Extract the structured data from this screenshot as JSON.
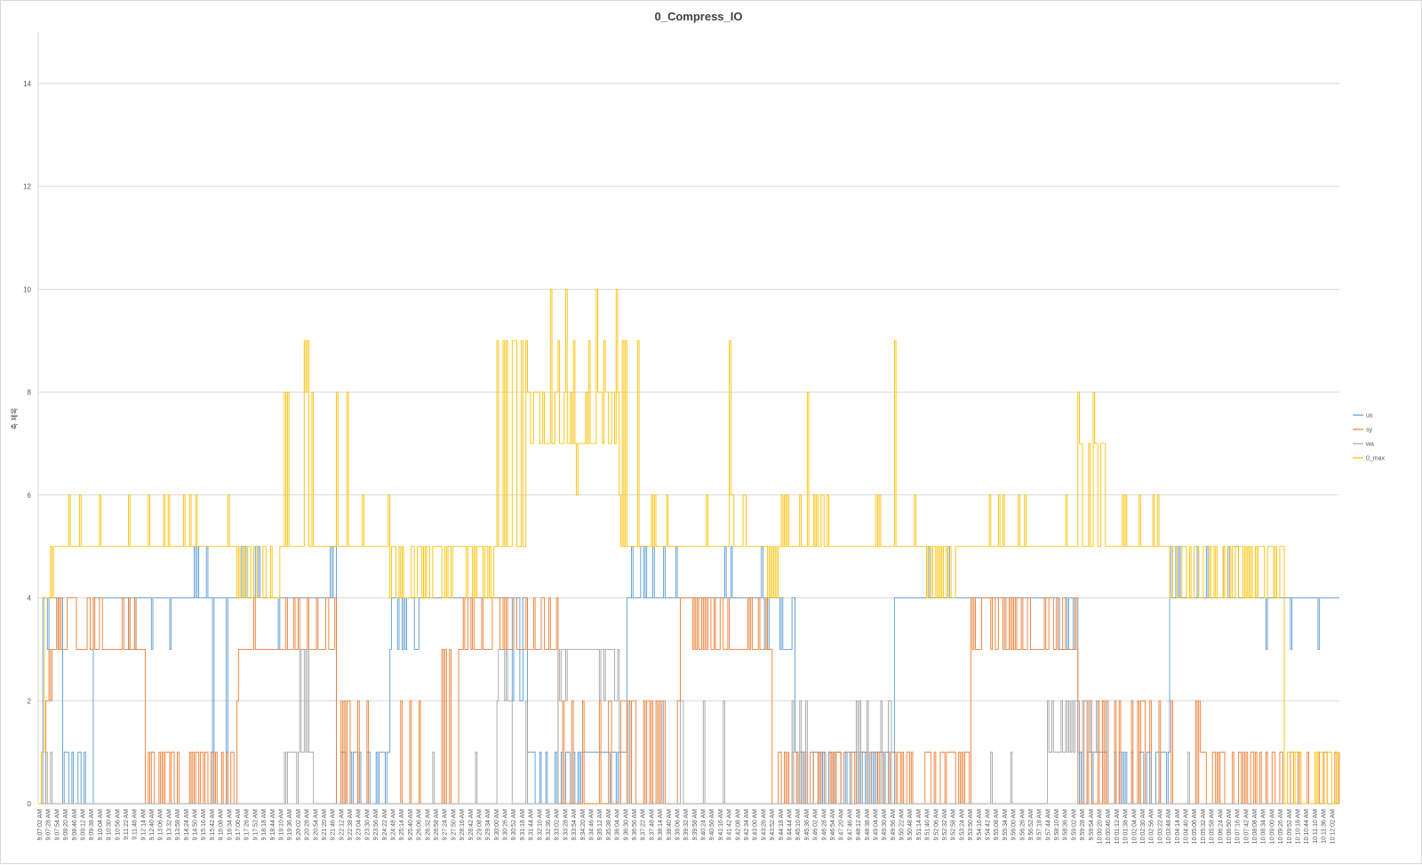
{
  "chart_data": {
    "type": "line",
    "title": "0_Compress_IO",
    "xlabel": "",
    "ylabel": "축 제목",
    "ylim": [
      0,
      15
    ],
    "yticks": [
      0,
      2,
      4,
      6,
      8,
      10,
      12,
      14
    ],
    "grid": true,
    "legend_position": "right",
    "x_start": "9:07:02 AM",
    "x_end": "10:12:20 AM",
    "x_tick_interval_seconds": 26,
    "x_tick_labels": [
      "9:07:02 AM",
      "9:07:28 AM",
      "9:07:54 AM",
      "9:08:20 AM",
      "9:08:46 AM",
      "9:09:12 AM",
      "9:09:38 AM",
      "9:10:04 AM",
      "9:10:30 AM",
      "9:10:56 AM",
      "9:11:22 AM",
      "9:11:48 AM",
      "9:12:14 AM",
      "9:12:40 AM",
      "9:13:06 AM",
      "9:13:32 AM",
      "9:13:58 AM",
      "9:14:24 AM",
      "9:14:50 AM",
      "9:15:16 AM",
      "9:15:42 AM",
      "9:16:08 AM",
      "9:16:34 AM",
      "9:17:00 AM",
      "9:17:26 AM",
      "9:17:52 AM",
      "9:18:18 AM",
      "9:18:44 AM",
      "9:19:10 AM",
      "9:19:36 AM",
      "9:20:02 AM",
      "9:20:28 AM",
      "9:20:54 AM",
      "9:21:20 AM",
      "9:21:46 AM",
      "9:22:12 AM",
      "9:22:38 AM",
      "9:23:04 AM",
      "9:23:30 AM",
      "9:23:56 AM",
      "9:24:22 AM",
      "9:24:48 AM",
      "9:25:14 AM",
      "9:25:40 AM",
      "9:26:06 AM",
      "9:26:32 AM",
      "9:26:58 AM",
      "9:27:24 AM",
      "9:27:50 AM",
      "9:28:16 AM",
      "9:28:42 AM",
      "9:29:08 AM",
      "9:29:34 AM",
      "9:30:00 AM",
      "9:30:26 AM",
      "9:30:52 AM",
      "9:31:18 AM",
      "9:31:44 AM",
      "9:32:10 AM",
      "9:32:36 AM",
      "9:33:02 AM",
      "9:33:28 AM",
      "9:33:54 AM",
      "9:34:20 AM",
      "9:34:46 AM",
      "9:35:12 AM",
      "9:35:38 AM",
      "9:36:04 AM",
      "9:36:30 AM",
      "9:36:56 AM",
      "9:37:22 AM",
      "9:37:48 AM",
      "9:38:14 AM",
      "9:38:40 AM",
      "9:39:06 AM",
      "9:39:32 AM",
      "9:39:58 AM",
      "9:40:24 AM",
      "9:40:50 AM",
      "9:41:16 AM",
      "9:41:42 AM",
      "9:42:08 AM",
      "9:42:34 AM",
      "9:43:00 AM",
      "9:43:26 AM",
      "9:43:52 AM",
      "9:44:18 AM",
      "9:44:44 AM",
      "9:45:10 AM",
      "9:45:36 AM",
      "9:46:02 AM",
      "9:46:28 AM",
      "9:46:54 AM",
      "9:47:20 AM",
      "9:47:46 AM",
      "9:48:12 AM",
      "9:48:38 AM",
      "9:49:04 AM",
      "9:49:30 AM",
      "9:49:56 AM",
      "9:50:22 AM",
      "9:50:48 AM",
      "9:51:14 AM",
      "9:51:40 AM",
      "9:52:06 AM",
      "9:52:32 AM",
      "9:52:58 AM",
      "9:53:24 AM",
      "9:53:50 AM",
      "9:54:16 AM",
      "9:54:42 AM",
      "9:55:08 AM",
      "9:55:34 AM",
      "9:56:00 AM",
      "9:56:26 AM",
      "9:56:52 AM",
      "9:57:18 AM",
      "9:57:44 AM",
      "9:58:10 AM",
      "9:58:36 AM",
      "9:59:02 AM",
      "9:59:28 AM",
      "9:59:54 AM",
      "10:00:20 AM",
      "10:00:46 AM",
      "10:01:12 AM",
      "10:01:38 AM",
      "10:02:04 AM",
      "10:02:30 AM",
      "10:02:56 AM",
      "10:03:22 AM",
      "10:03:48 AM",
      "10:04:14 AM",
      "10:04:40 AM",
      "10:05:06 AM",
      "10:05:32 AM",
      "10:05:58 AM",
      "10:06:24 AM",
      "10:06:50 AM",
      "10:07:16 AM",
      "10:07:42 AM",
      "10:08:08 AM",
      "10:08:34 AM",
      "10:09:00 AM",
      "10:09:26 AM",
      "10:09:52 AM",
      "10:10:18 AM",
      "10:10:44 AM",
      "10:11:10 AM",
      "10:11:36 AM",
      "10:12:02 AM"
    ],
    "series": [
      {
        "name": "us",
        "color": "#5B9BD5",
        "segments": [
          {
            "from": 0,
            "to": 3,
            "base": 0,
            "alt": 1,
            "density": 0.15
          },
          {
            "from": 3,
            "to": 16,
            "base": 4,
            "alt": 3,
            "density": 0.2
          },
          {
            "from": 16,
            "to": 36,
            "base": 1,
            "alt": 0,
            "density": 0.55
          },
          {
            "from": 36,
            "to": 100,
            "base": 4,
            "alt": 3,
            "density": 0.04
          },
          {
            "from": 100,
            "to": 108,
            "base": 4,
            "alt": 5,
            "density": 0.2
          },
          {
            "from": 108,
            "to": 114,
            "base": 4,
            "alt": 5,
            "density": 0.3
          },
          {
            "from": 114,
            "to": 130,
            "base": 4,
            "alt": 0,
            "density": 0.04
          },
          {
            "from": 130,
            "to": 150,
            "base": 4,
            "alt": 5,
            "density": 0.3
          },
          {
            "from": 150,
            "to": 155,
            "base": 4,
            "alt": 1,
            "density": 0.1
          },
          {
            "from": 155,
            "to": 185,
            "base": 4,
            "alt": 3,
            "density": 0.05
          },
          {
            "from": 185,
            "to": 195,
            "base": 4,
            "alt": 5,
            "density": 0.2
          },
          {
            "from": 195,
            "to": 230,
            "base": 1,
            "alt": 0,
            "density": 0.5
          },
          {
            "from": 230,
            "to": 250,
            "base": 4,
            "alt": 3,
            "density": 0.4
          },
          {
            "from": 250,
            "to": 300,
            "base": 4,
            "alt": 3,
            "density": 0.04
          },
          {
            "from": 300,
            "to": 320,
            "base": 4,
            "alt": 2,
            "density": 0.15
          },
          {
            "from": 320,
            "to": 355,
            "base": 1,
            "alt": 0,
            "density": 0.7
          },
          {
            "from": 355,
            "to": 385,
            "base": 1,
            "alt": 0,
            "density": 0.06
          },
          {
            "from": 385,
            "to": 475,
            "base": 4,
            "alt": 5,
            "density": 0.12
          },
          {
            "from": 475,
            "to": 495,
            "base": 4,
            "alt": 3,
            "density": 0.4
          },
          {
            "from": 495,
            "to": 560,
            "base": 1,
            "alt": 0,
            "density": 0.45
          },
          {
            "from": 560,
            "to": 660,
            "base": 4,
            "alt": 5,
            "density": 0.05
          },
          {
            "from": 660,
            "to": 680,
            "base": 4,
            "alt": 3,
            "density": 0.3
          },
          {
            "from": 680,
            "to": 740,
            "base": 1,
            "alt": 0,
            "density": 0.5
          },
          {
            "from": 740,
            "to": 800,
            "base": 4,
            "alt": 5,
            "density": 0.06
          },
          {
            "from": 800,
            "to": 852,
            "base": 4,
            "alt": 3,
            "density": 0.05
          }
        ]
      },
      {
        "name": "sy",
        "color": "#ED7D31",
        "segments": [
          {
            "from": 0,
            "to": 5,
            "base": 0,
            "alt": 0,
            "density": 0
          },
          {
            "from": 5,
            "to": 12,
            "base": 2,
            "alt": 3,
            "density": 0.5
          },
          {
            "from": 12,
            "to": 20,
            "base": 3,
            "alt": 4,
            "density": 0.6
          },
          {
            "from": 20,
            "to": 70,
            "base": 3,
            "alt": 4,
            "density": 0.2
          },
          {
            "from": 70,
            "to": 130,
            "base": 1,
            "alt": 0,
            "density": 0.6
          },
          {
            "from": 130,
            "to": 136,
            "base": 3,
            "alt": 2,
            "density": 0.4
          },
          {
            "from": 136,
            "to": 195,
            "base": 3,
            "alt": 4,
            "density": 0.2
          },
          {
            "from": 195,
            "to": 260,
            "base": 0,
            "alt": 2,
            "density": 0.15
          },
          {
            "from": 260,
            "to": 275,
            "base": 0,
            "alt": 3,
            "density": 0.2
          },
          {
            "from": 275,
            "to": 340,
            "base": 3,
            "alt": 4,
            "density": 0.25
          },
          {
            "from": 340,
            "to": 420,
            "base": 0,
            "alt": 2,
            "density": 0.2
          },
          {
            "from": 420,
            "to": 445,
            "base": 3,
            "alt": 4,
            "density": 0.55
          },
          {
            "from": 445,
            "to": 480,
            "base": 3,
            "alt": 4,
            "density": 0.2
          },
          {
            "from": 480,
            "to": 610,
            "base": 1,
            "alt": 0,
            "density": 0.55
          },
          {
            "from": 610,
            "to": 640,
            "base": 3,
            "alt": 4,
            "density": 0.5
          },
          {
            "from": 640,
            "to": 680,
            "base": 3,
            "alt": 4,
            "density": 0.25
          },
          {
            "from": 680,
            "to": 760,
            "base": 0,
            "alt": 2,
            "density": 0.15
          },
          {
            "from": 760,
            "to": 820,
            "base": 1,
            "alt": 0,
            "density": 0.55
          },
          {
            "from": 820,
            "to": 852,
            "base": 0,
            "alt": 1,
            "density": 0.35
          }
        ]
      },
      {
        "name": "wa",
        "color": "#A5A5A5",
        "segments": [
          {
            "from": 0,
            "to": 10,
            "base": 0,
            "alt": 1,
            "density": 0.3
          },
          {
            "from": 10,
            "to": 160,
            "base": 0,
            "alt": 1,
            "density": 0.0
          },
          {
            "from": 160,
            "to": 170,
            "base": 1,
            "alt": 0,
            "density": 0.5
          },
          {
            "from": 170,
            "to": 180,
            "base": 3,
            "alt": 1,
            "density": 0.5
          },
          {
            "from": 180,
            "to": 250,
            "base": 0,
            "alt": 1,
            "density": 0.0
          },
          {
            "from": 250,
            "to": 300,
            "base": 0,
            "alt": 1,
            "density": 0.06
          },
          {
            "from": 300,
            "to": 310,
            "base": 2,
            "alt": 3,
            "density": 0.4
          },
          {
            "from": 310,
            "to": 340,
            "base": 0,
            "alt": 2,
            "density": 0.08
          },
          {
            "from": 340,
            "to": 380,
            "base": 3,
            "alt": 2,
            "density": 0.1
          },
          {
            "from": 380,
            "to": 480,
            "base": 0,
            "alt": 2,
            "density": 0.06
          },
          {
            "from": 480,
            "to": 560,
            "base": 0,
            "alt": 2,
            "density": 0.08
          },
          {
            "from": 560,
            "to": 660,
            "base": 0,
            "alt": 1,
            "density": 0.02
          },
          {
            "from": 660,
            "to": 700,
            "base": 1,
            "alt": 2,
            "density": 0.4
          },
          {
            "from": 700,
            "to": 760,
            "base": 0,
            "alt": 1,
            "density": 0.03
          },
          {
            "from": 760,
            "to": 852,
            "base": 0,
            "alt": 1,
            "density": 0.01
          }
        ]
      },
      {
        "name": "0_max",
        "color": "#FFC000",
        "segments": [
          {
            "from": 0,
            "to": 4,
            "base": 0,
            "alt": 1,
            "density": 0.5
          },
          {
            "from": 4,
            "to": 10,
            "base": 4,
            "alt": 5,
            "density": 0.5
          },
          {
            "from": 10,
            "to": 130,
            "base": 5,
            "alt": 6,
            "density": 0.12
          },
          {
            "from": 130,
            "to": 160,
            "base": 4,
            "alt": 5,
            "density": 0.3
          },
          {
            "from": 160,
            "to": 180,
            "base": 5,
            "alt": 8,
            "density": 0.3
          },
          {
            "from": 180,
            "to": 230,
            "base": 5,
            "alt": 6,
            "density": 0.1
          },
          {
            "from": 230,
            "to": 300,
            "base": 4,
            "alt": 5,
            "density": 0.6
          },
          {
            "from": 300,
            "to": 320,
            "base": 5,
            "alt": 9,
            "density": 0.25
          },
          {
            "from": 320,
            "to": 380,
            "base": 7,
            "alt": 8,
            "density": 0.45
          },
          {
            "from": 380,
            "to": 385,
            "base": 9,
            "alt": 5,
            "density": 0.5
          },
          {
            "from": 385,
            "to": 475,
            "base": 5,
            "alt": 6,
            "density": 0.12
          },
          {
            "from": 475,
            "to": 485,
            "base": 4,
            "alt": 5,
            "density": 0.5
          },
          {
            "from": 485,
            "to": 580,
            "base": 5,
            "alt": 6,
            "density": 0.12
          },
          {
            "from": 580,
            "to": 600,
            "base": 4,
            "alt": 5,
            "density": 0.55
          },
          {
            "from": 600,
            "to": 680,
            "base": 5,
            "alt": 6,
            "density": 0.12
          },
          {
            "from": 680,
            "to": 700,
            "base": 5,
            "alt": 7,
            "density": 0.4
          },
          {
            "from": 700,
            "to": 740,
            "base": 5,
            "alt": 6,
            "density": 0.15
          },
          {
            "from": 740,
            "to": 805,
            "base": 4,
            "alt": 5,
            "density": 0.55
          },
          {
            "from": 805,
            "to": 815,
            "base": 5,
            "alt": 4,
            "density": 0.3
          },
          {
            "from": 815,
            "to": 852,
            "base": 0,
            "alt": 1,
            "density": 0.45
          }
        ],
        "spikes": [
          {
            "i": 320,
            "v": 8
          },
          {
            "i": 335,
            "v": 10
          },
          {
            "i": 345,
            "v": 10
          },
          {
            "i": 340,
            "v": 9
          },
          {
            "i": 310,
            "v": 9
          },
          {
            "i": 312,
            "v": 9
          },
          {
            "i": 350,
            "v": 9
          },
          {
            "i": 360,
            "v": 9
          },
          {
            "i": 365,
            "v": 10
          },
          {
            "i": 370,
            "v": 9
          },
          {
            "i": 378,
            "v": 10
          },
          {
            "i": 174,
            "v": 9
          },
          {
            "i": 176,
            "v": 9
          },
          {
            "i": 392,
            "v": 9
          },
          {
            "i": 452,
            "v": 9
          },
          {
            "i": 503,
            "v": 8
          },
          {
            "i": 560,
            "v": 9
          },
          {
            "i": 680,
            "v": 8
          },
          {
            "i": 690,
            "v": 8
          },
          {
            "i": 195,
            "v": 8
          },
          {
            "i": 202,
            "v": 8
          },
          {
            "i": 380,
            "v": 6
          },
          {
            "i": 352,
            "v": 6
          }
        ]
      }
    ]
  }
}
